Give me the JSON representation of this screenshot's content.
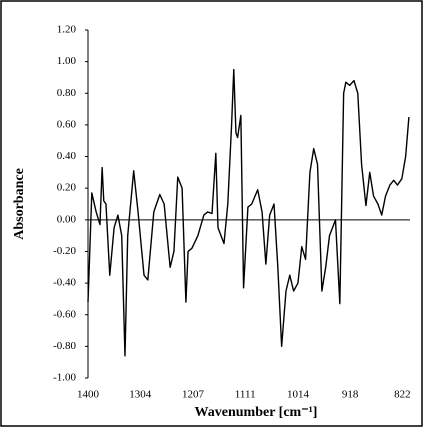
{
  "chart_data": {
    "type": "line",
    "x_label": "Wavenumber [cm⁻¹]",
    "y_label": "Absorbance",
    "x": [
      1400,
      1393,
      1385,
      1378,
      1374,
      1371,
      1367,
      1360,
      1352,
      1345,
      1338,
      1332,
      1327,
      1316,
      1308,
      1297,
      1290,
      1279,
      1268,
      1260,
      1249,
      1242,
      1235,
      1227,
      1220,
      1216,
      1209,
      1198,
      1187,
      1180,
      1172,
      1165,
      1161,
      1150,
      1143,
      1136,
      1132,
      1128,
      1125,
      1119,
      1114,
      1106,
      1099,
      1088,
      1080,
      1073,
      1066,
      1058,
      1051,
      1044,
      1036,
      1029,
      1022,
      1014,
      1007,
      1000,
      992,
      985,
      978,
      970,
      963,
      956,
      945,
      937,
      930,
      926,
      919,
      911,
      904,
      897,
      889,
      882,
      875,
      867,
      860,
      853,
      845,
      838,
      831,
      823,
      816,
      810
    ],
    "series": [
      {
        "color": "#000000",
        "values": [
          -0.52,
          0.17,
          0.05,
          -0.03,
          0.33,
          0.12,
          0.1,
          -0.35,
          -0.05,
          0.03,
          -0.1,
          -0.86,
          -0.1,
          0.31,
          0.05,
          -0.35,
          -0.38,
          0.05,
          0.16,
          0.1,
          -0.3,
          -0.2,
          0.27,
          0.2,
          -0.52,
          -0.2,
          -0.18,
          -0.1,
          0.03,
          0.05,
          0.04,
          0.42,
          -0.05,
          -0.15,
          0.1,
          0.6,
          0.95,
          0.55,
          0.52,
          0.66,
          -0.43,
          0.08,
          0.1,
          0.19,
          0.05,
          -0.28,
          0.03,
          0.1,
          -0.3,
          -0.8,
          -0.45,
          -0.35,
          -0.45,
          -0.4,
          -0.17,
          -0.25,
          0.3,
          0.45,
          0.35,
          -0.45,
          -0.3,
          -0.1,
          0.0,
          -0.53,
          0.8,
          0.87,
          0.85,
          0.88,
          0.8,
          0.35,
          0.09,
          0.3,
          0.15,
          0.1,
          0.03,
          0.15,
          0.22,
          0.25,
          0.22,
          0.26,
          0.4,
          0.65
        ]
      }
    ],
    "xlim": [
      1400,
      808
    ],
    "xticks": [
      1400,
      1304,
      1207,
      1111,
      1014,
      918,
      822
    ],
    "ylim": [
      -1,
      1.2
    ],
    "yticks": [
      {
        "value": -1,
        "label": "-1.00"
      },
      {
        "value": -0.8,
        "label": "-0.80"
      },
      {
        "value": -0.6,
        "label": "-0.60"
      },
      {
        "value": -0.4,
        "label": "-0.40"
      },
      {
        "value": -0.2,
        "label": "-0.20"
      },
      {
        "value": 0,
        "label": "0.00"
      },
      {
        "value": 0.2,
        "label": "0.20"
      },
      {
        "value": 0.4,
        "label": "0.40"
      },
      {
        "value": 0.6,
        "label": "0.60"
      },
      {
        "value": 0.8,
        "label": "0.80"
      },
      {
        "value": 1,
        "label": "1.00"
      },
      {
        "value": 1.2,
        "label": "1.20"
      }
    ]
  }
}
